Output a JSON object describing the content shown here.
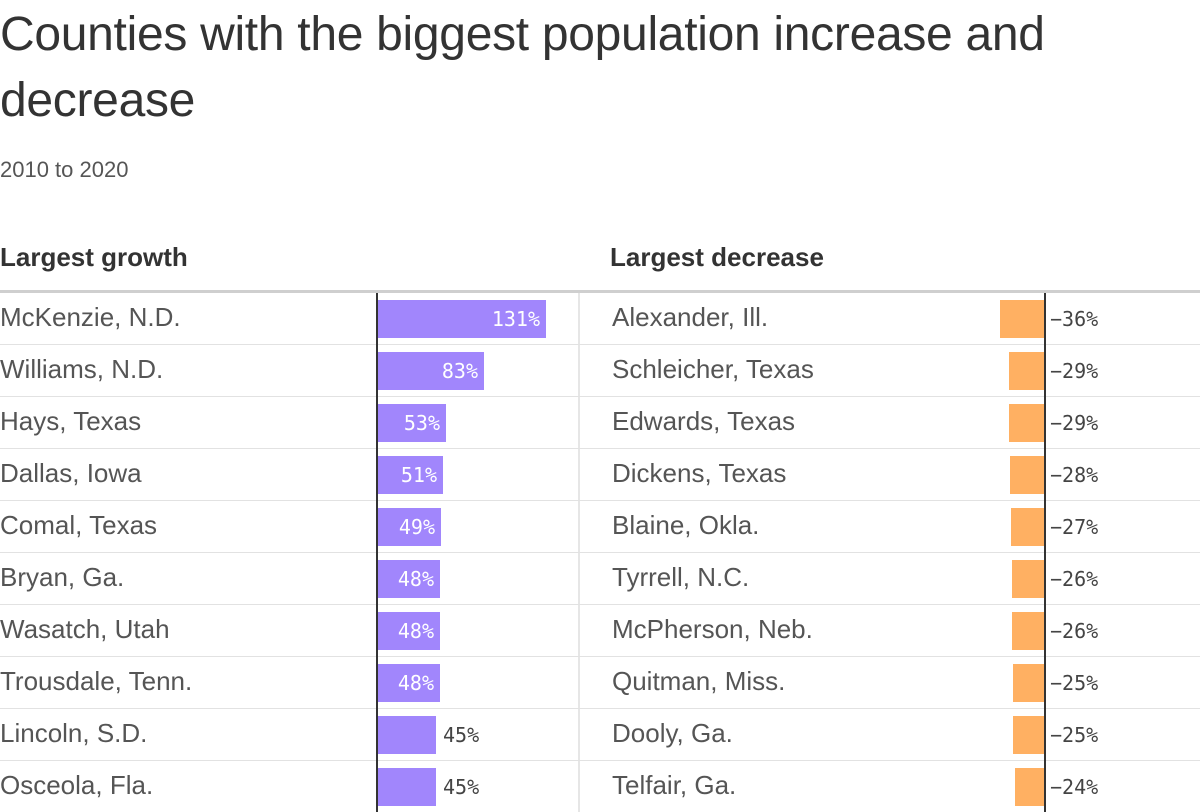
{
  "chart_data": {
    "type": "bar",
    "title": "Counties with the biggest population increase and decrease",
    "subtitle": "2010 to 2020",
    "unit": "%",
    "panels": [
      {
        "heading": "Largest growth",
        "color": "#a186fc",
        "rows": [
          {
            "name": "McKenzie, N.D.",
            "value": 131,
            "label": "131%"
          },
          {
            "name": "Williams, N.D.",
            "value": 83,
            "label": "83%"
          },
          {
            "name": "Hays, Texas",
            "value": 53,
            "label": "53%"
          },
          {
            "name": "Dallas, Iowa",
            "value": 51,
            "label": "51%"
          },
          {
            "name": "Comal, Texas",
            "value": 49,
            "label": "49%"
          },
          {
            "name": "Bryan, Ga.",
            "value": 48,
            "label": "48%"
          },
          {
            "name": "Wasatch, Utah",
            "value": 48,
            "label": "48%"
          },
          {
            "name": "Trousdale, Tenn.",
            "value": 48,
            "label": "48%"
          },
          {
            "name": "Lincoln, S.D.",
            "value": 45,
            "label": "45%"
          },
          {
            "name": "Osceola, Fla.",
            "value": 45,
            "label": "45%"
          }
        ]
      },
      {
        "heading": "Largest decrease",
        "color": "#ffb062",
        "rows": [
          {
            "name": "Alexander, Ill.",
            "value": -36,
            "label": "−36%"
          },
          {
            "name": "Schleicher, Texas",
            "value": -29,
            "label": "−29%"
          },
          {
            "name": "Edwards, Texas",
            "value": -29,
            "label": "−29%"
          },
          {
            "name": "Dickens, Texas",
            "value": -28,
            "label": "−28%"
          },
          {
            "name": "Blaine, Okla.",
            "value": -27,
            "label": "−27%"
          },
          {
            "name": "Tyrrell, N.C.",
            "value": -26,
            "label": "−26%"
          },
          {
            "name": "McPherson, Neb.",
            "value": -26,
            "label": "−26%"
          },
          {
            "name": "Quitman, Miss.",
            "value": -25,
            "label": "−25%"
          },
          {
            "name": "Dooly, Ga.",
            "value": -25,
            "label": "−25%"
          },
          {
            "name": "Telfair, Ga.",
            "value": -24,
            "label": "−24%"
          }
        ]
      }
    ]
  }
}
